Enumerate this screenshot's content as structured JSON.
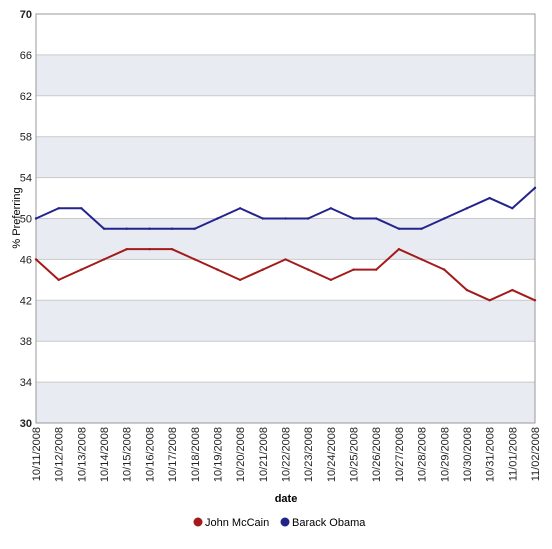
{
  "chart_data": {
    "type": "line",
    "xlabel": "date",
    "ylabel": "% Preferring",
    "ylim": [
      30,
      70
    ],
    "yticks": [
      "30",
      "34",
      "38",
      "42",
      "46",
      "50",
      "54",
      "58",
      "62",
      "66",
      "70"
    ],
    "categories": [
      "10/11/2008",
      "10/12/2008",
      "10/13/2008",
      "10/14/2008",
      "10/15/2008",
      "10/16/2008",
      "10/17/2008",
      "10/18/2008",
      "10/19/2008",
      "10/20/2008",
      "10/21/2008",
      "10/22/2008",
      "10/23/2008",
      "10/24/2008",
      "10/25/2008",
      "10/26/2008",
      "10/27/2008",
      "10/28/2008",
      "10/29/2008",
      "10/30/2008",
      "10/31/2008",
      "11/01/2008",
      "11/02/2008"
    ],
    "series": [
      {
        "name": "John McCain",
        "color": "#a31a1a",
        "values": [
          46,
          44,
          45,
          46,
          47,
          47,
          47,
          46,
          45,
          44,
          45,
          46,
          45,
          44,
          45,
          45,
          47,
          46,
          45,
          43,
          42,
          43,
          42
        ]
      },
      {
        "name": "Barack Obama",
        "color": "#23238c",
        "values": [
          50,
          51,
          51,
          49,
          49,
          49,
          49,
          49,
          50,
          51,
          50,
          50,
          50,
          51,
          50,
          50,
          49,
          49,
          50,
          51,
          52,
          51,
          53
        ]
      }
    ],
    "grid": true,
    "band_color": "#e8ecf2",
    "legend_position": "bottom-center"
  }
}
